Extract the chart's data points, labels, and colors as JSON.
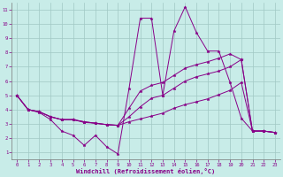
{
  "xlabel": "Windchill (Refroidissement éolien,°C)",
  "bg_color": "#c8ece8",
  "line_color": "#880088",
  "grid_color": "#a0c8c4",
  "xlim": [
    -0.5,
    23.5
  ],
  "ylim": [
    0.5,
    11.5
  ],
  "xticks": [
    0,
    1,
    2,
    3,
    4,
    5,
    6,
    7,
    8,
    9,
    10,
    11,
    12,
    13,
    14,
    15,
    16,
    17,
    18,
    19,
    20,
    21,
    22,
    23
  ],
  "yticks": [
    1,
    2,
    3,
    4,
    5,
    6,
    7,
    8,
    9,
    10,
    11
  ],
  "series": [
    [
      5.0,
      4.0,
      3.8,
      3.3,
      2.5,
      2.2,
      1.5,
      2.2,
      1.4,
      0.9,
      5.5,
      10.4,
      10.4,
      5.0,
      9.5,
      11.2,
      9.4,
      8.1,
      8.1,
      5.9,
      3.4,
      2.5,
      2.5,
      2.4
    ],
    [
      5.0,
      4.0,
      3.85,
      3.5,
      3.3,
      3.3,
      3.1,
      3.05,
      2.95,
      2.9,
      3.15,
      3.35,
      3.55,
      3.75,
      4.1,
      4.35,
      4.55,
      4.75,
      5.05,
      5.35,
      5.9,
      2.5,
      2.5,
      2.4
    ],
    [
      5.0,
      4.0,
      3.85,
      3.5,
      3.3,
      3.3,
      3.15,
      3.05,
      2.95,
      2.9,
      3.5,
      4.2,
      4.8,
      5.0,
      5.5,
      6.0,
      6.3,
      6.5,
      6.7,
      7.0,
      7.5,
      2.5,
      2.5,
      2.4
    ],
    [
      5.0,
      4.0,
      3.85,
      3.5,
      3.3,
      3.3,
      3.15,
      3.05,
      2.95,
      2.9,
      4.1,
      5.3,
      5.7,
      5.9,
      6.4,
      6.9,
      7.15,
      7.35,
      7.6,
      7.9,
      7.5,
      2.5,
      2.5,
      2.4
    ]
  ]
}
